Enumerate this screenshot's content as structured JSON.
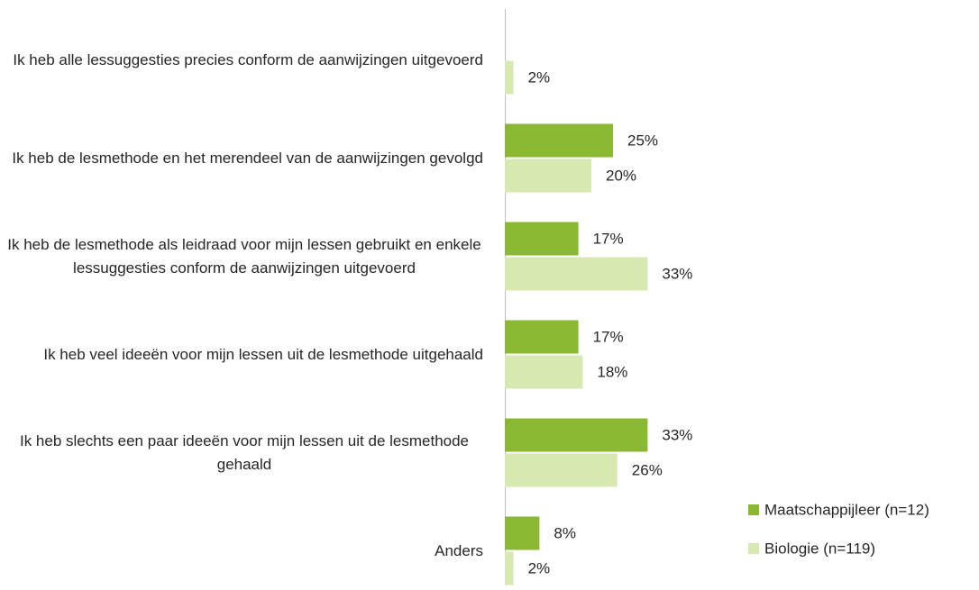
{
  "chart_data": {
    "type": "bar",
    "orientation": "horizontal",
    "categories": [
      "Ik heb alle lessuggesties precies conform de aanwijzingen uitgevoerd",
      "Ik heb de lesmethode en het merendeel van de aanwijzingen gevolgd",
      "Ik heb de lesmethode als leidraad voor mijn lessen gebruikt en enkele lessuggesties conform de aanwijzingen uitgevoerd",
      "Ik heb veel ideeën voor mijn lessen uit de lesmethode uitgehaald",
      "Ik heb slechts een paar ideeën voor mijn lessen uit de lesmethode gehaald",
      "Anders"
    ],
    "series": [
      {
        "name": "Maatschappijleer (n=12)",
        "color": "#8ab833",
        "values": [
          null,
          25,
          17,
          17,
          33,
          8
        ],
        "value_labels": [
          null,
          "25%",
          "17%",
          "17%",
          "33%",
          "8%"
        ]
      },
      {
        "name": "Biologie (n=119)",
        "color": "#d7e8b0",
        "values": [
          2,
          20,
          33,
          18,
          26,
          2
        ],
        "value_labels": [
          "2%",
          "20%",
          "33%",
          "18%",
          "26%",
          "2%"
        ]
      }
    ],
    "xlim": [
      0,
      100
    ],
    "legend": "right"
  }
}
